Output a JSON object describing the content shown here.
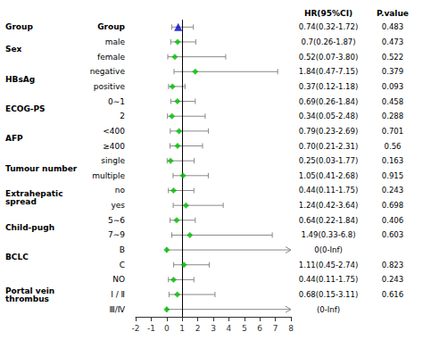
{
  "chart_data": {
    "type": "forest",
    "column_titles": [
      "HR(95%CI)",
      "P.value"
    ],
    "rows": [
      {
        "category": "Group",
        "subgroup": "Group",
        "hr": 0.74,
        "ci_lo": 0.32,
        "ci_hi": 1.72,
        "hr_text": "0.74(0.32-1.72)",
        "p_text": "0.483",
        "is_header": true,
        "marker": "triangle",
        "color": "#0000cc"
      },
      {
        "category": "Sex",
        "subgroup": "male",
        "hr": 0.7,
        "ci_lo": 0.26,
        "ci_hi": 1.87,
        "hr_text": "0.7(0.26-1.87)",
        "p_text": "0.473",
        "is_header": false,
        "marker": "diamond",
        "color": "#00bb00"
      },
      {
        "category": null,
        "subgroup": "female",
        "hr": 0.52,
        "ci_lo": 0.07,
        "ci_hi": 3.8,
        "hr_text": "0.52(0.07-3.80)",
        "p_text": "0.522",
        "is_header": false,
        "marker": "diamond",
        "color": "#00bb00"
      },
      {
        "category": "HBsAg",
        "subgroup": "negative",
        "hr": 1.84,
        "ci_lo": 0.47,
        "ci_hi": 7.15,
        "hr_text": "1.84(0.47-7.15)",
        "p_text": "0.379",
        "is_header": false,
        "marker": "diamond",
        "color": "#00bb00"
      },
      {
        "category": null,
        "subgroup": "positive",
        "hr": 0.37,
        "ci_lo": 0.12,
        "ci_hi": 1.18,
        "hr_text": "0.37(0.12-1.18)",
        "p_text": "0.093",
        "is_header": false,
        "marker": "diamond",
        "color": "#00bb00"
      },
      {
        "category": "ECOG-PS",
        "subgroup": "0∼1",
        "hr": 0.69,
        "ci_lo": 0.26,
        "ci_hi": 1.84,
        "hr_text": "0.69(0.26-1.84)",
        "p_text": "0.458",
        "is_header": false,
        "marker": "diamond",
        "color": "#00bb00"
      },
      {
        "category": null,
        "subgroup": "2",
        "hr": 0.34,
        "ci_lo": 0.05,
        "ci_hi": 2.48,
        "hr_text": "0.34(0.05-2.48)",
        "p_text": "0.288",
        "is_header": false,
        "marker": "diamond",
        "color": "#00bb00"
      },
      {
        "category": "AFP",
        "subgroup": "<400",
        "hr": 0.79,
        "ci_lo": 0.23,
        "ci_hi": 2.69,
        "hr_text": "0.79(0.23-2.69)",
        "p_text": "0.701",
        "is_header": false,
        "marker": "diamond",
        "color": "#00bb00"
      },
      {
        "category": null,
        "subgroup": "≥400",
        "hr": 0.7,
        "ci_lo": 0.21,
        "ci_hi": 2.31,
        "hr_text": "0.70(0.21-2.31)",
        "p_text": "0.56",
        "is_header": false,
        "marker": "diamond",
        "color": "#00bb00"
      },
      {
        "category": "Tumour number",
        "subgroup": "single",
        "hr": 0.25,
        "ci_lo": 0.03,
        "ci_hi": 1.77,
        "hr_text": "0.25(0.03-1.77)",
        "p_text": "0.163",
        "is_header": false,
        "marker": "diamond",
        "color": "#00bb00"
      },
      {
        "category": null,
        "subgroup": "multiple",
        "hr": 1.05,
        "ci_lo": 0.41,
        "ci_hi": 2.68,
        "hr_text": "1.05(0.41-2.68)",
        "p_text": "0.915",
        "is_header": false,
        "marker": "diamond",
        "color": "#00bb00"
      },
      {
        "category": "Extrahepatic\nspread",
        "subgroup": "no",
        "hr": 0.44,
        "ci_lo": 0.11,
        "ci_hi": 1.75,
        "hr_text": "0.44(0.11-1.75)",
        "p_text": "0.243",
        "is_header": false,
        "marker": "diamond",
        "color": "#00bb00"
      },
      {
        "category": null,
        "subgroup": "yes",
        "hr": 1.24,
        "ci_lo": 0.42,
        "ci_hi": 3.64,
        "hr_text": "1.24(0.42-3.64)",
        "p_text": "0.698",
        "is_header": false,
        "marker": "diamond",
        "color": "#00bb00"
      },
      {
        "category": "Child-pugh",
        "subgroup": "5∼6",
        "hr": 0.64,
        "ci_lo": 0.22,
        "ci_hi": 1.84,
        "hr_text": "0.64(0.22-1.84)",
        "p_text": "0.406",
        "is_header": false,
        "marker": "diamond",
        "color": "#00bb00"
      },
      {
        "category": null,
        "subgroup": "7∼9",
        "hr": 1.49,
        "ci_lo": 0.33,
        "ci_hi": 6.8,
        "hr_text": "1.49(0.33-6.8)",
        "p_text": "0.603",
        "is_header": false,
        "marker": "diamond",
        "color": "#00bb00"
      },
      {
        "category": "BCLC",
        "subgroup": "B",
        "hr": 0.0,
        "ci_lo": 0.0,
        "ci_hi": null,
        "hr_text": "0(0-Inf)",
        "p_text": null,
        "is_header": false,
        "marker": "diamond",
        "color": "#00bb00"
      },
      {
        "category": null,
        "subgroup": "C",
        "hr": 1.11,
        "ci_lo": 0.45,
        "ci_hi": 2.74,
        "hr_text": "1.11(0.45-2.74)",
        "p_text": "0.823",
        "is_header": false,
        "marker": "diamond",
        "color": "#00bb00"
      },
      {
        "category": "Portal vein\nthrombus",
        "subgroup": "NO",
        "hr": 0.44,
        "ci_lo": 0.11,
        "ci_hi": 1.75,
        "hr_text": "0.44(0.11-1.75)",
        "p_text": "0.243",
        "is_header": false,
        "marker": "diamond",
        "color": "#00bb00"
      },
      {
        "category": null,
        "subgroup": "I / Ⅱ",
        "hr": 0.68,
        "ci_lo": 0.15,
        "ci_hi": 3.11,
        "hr_text": "0.68(0.15-3.11)",
        "p_text": "0.616",
        "is_header": false,
        "marker": "diamond",
        "color": "#00bb00"
      },
      {
        "category": null,
        "subgroup": "Ⅲ/Ⅳ",
        "hr": 0.0,
        "ci_lo": 0.0,
        "ci_hi": null,
        "hr_text": "(0-Inf)",
        "p_text": null,
        "is_header": false,
        "marker": "diamond",
        "color": "#00bb00"
      }
    ],
    "xlim": [
      -2,
      8
    ],
    "xticks": [
      -2,
      -1,
      0,
      1,
      2,
      3,
      4,
      5,
      6,
      7,
      8
    ],
    "vline": 1,
    "grid": false
  }
}
